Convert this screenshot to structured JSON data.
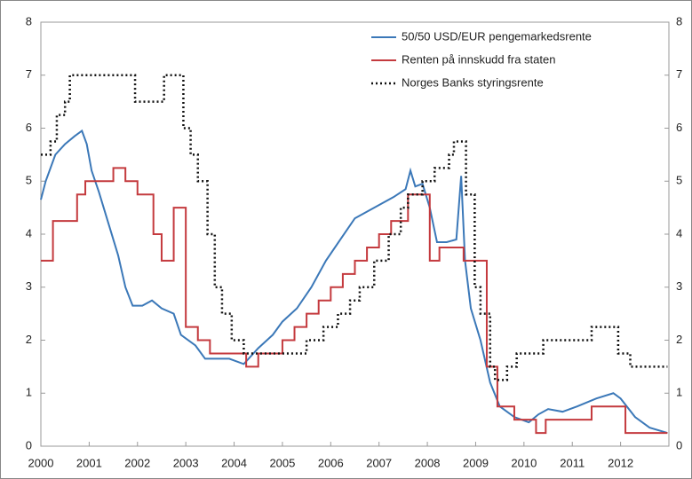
{
  "chart_data": {
    "type": "line",
    "xlim": [
      2000,
      2013
    ],
    "xticks": [
      2000,
      2001,
      2002,
      2003,
      2004,
      2005,
      2006,
      2007,
      2008,
      2009,
      2010,
      2011,
      2012
    ],
    "ylim": [
      0,
      8
    ],
    "yticks": [
      0,
      1,
      2,
      3,
      4,
      5,
      6,
      7,
      8
    ],
    "y2lim": [
      0,
      8
    ],
    "y2ticks": [
      0,
      1,
      2,
      3,
      4,
      5,
      6,
      7,
      8
    ],
    "legend": "top-right",
    "series": [
      {
        "name": "50/50 USD/EUR pengemarkedsrente",
        "color": "#3b78b8",
        "style": "solid",
        "step": false,
        "x": [
          2000,
          2000.1,
          2000.3,
          2000.5,
          2000.7,
          2000.85,
          2000.95,
          2001.05,
          2001.2,
          2001.4,
          2001.6,
          2001.75,
          2001.9,
          2002.1,
          2002.3,
          2002.5,
          2002.75,
          2002.9,
          2003.2,
          2003.4,
          2003.6,
          2003.9,
          2004.2,
          2004.5,
          2004.8,
          2005.0,
          2005.3,
          2005.6,
          2005.9,
          2006.2,
          2006.5,
          2006.8,
          2007.0,
          2007.3,
          2007.55,
          2007.65,
          2007.75,
          2007.9,
          2008.05,
          2008.2,
          2008.4,
          2008.6,
          2008.7,
          2008.78,
          2008.9,
          2009.1,
          2009.3,
          2009.5,
          2009.8,
          2010.1,
          2010.3,
          2010.5,
          2010.8,
          2011.1,
          2011.5,
          2011.85,
          2012.0,
          2012.3,
          2012.6,
          2012.97
        ],
        "values": [
          4.65,
          5.0,
          5.5,
          5.7,
          5.85,
          5.95,
          5.7,
          5.2,
          4.8,
          4.2,
          3.6,
          3.0,
          2.65,
          2.65,
          2.75,
          2.6,
          2.5,
          2.1,
          1.9,
          1.65,
          1.65,
          1.65,
          1.55,
          1.85,
          2.1,
          2.35,
          2.6,
          3.0,
          3.5,
          3.9,
          4.3,
          4.45,
          4.55,
          4.7,
          4.85,
          5.2,
          4.9,
          4.95,
          4.5,
          3.85,
          3.85,
          3.9,
          5.1,
          3.5,
          2.6,
          2.0,
          1.2,
          0.75,
          0.55,
          0.45,
          0.6,
          0.7,
          0.65,
          0.75,
          0.9,
          1.0,
          0.9,
          0.55,
          0.35,
          0.25
        ]
      },
      {
        "name": "Renten på innskudd fra staten",
        "color": "#c43a3e",
        "style": "solid",
        "step": true,
        "x": [
          2000,
          2000.25,
          2000.75,
          2000.92,
          2001.5,
          2001.75,
          2002.0,
          2002.33,
          2002.5,
          2002.75,
          2003.0,
          2003.25,
          2003.5,
          2004.25,
          2004.5,
          2005.0,
          2005.25,
          2005.5,
          2005.75,
          2006.0,
          2006.25,
          2006.5,
          2006.75,
          2007.0,
          2007.25,
          2007.6,
          2008.05,
          2008.25,
          2008.75,
          2009.23,
          2009.45,
          2009.8,
          2010.25,
          2010.45,
          2011.4,
          2012.1,
          2012.97
        ],
        "values": [
          3.5,
          4.25,
          4.75,
          5.0,
          5.25,
          5.0,
          4.75,
          4.0,
          3.5,
          4.5,
          2.25,
          2.0,
          1.75,
          1.5,
          1.75,
          2.0,
          2.25,
          2.5,
          2.75,
          3.0,
          3.25,
          3.5,
          3.75,
          4.0,
          4.25,
          4.75,
          3.5,
          3.75,
          3.5,
          1.5,
          0.75,
          0.5,
          0.25,
          0.5,
          0.75,
          0.25,
          0.25
        ]
      },
      {
        "name": "Norges Banks styringsrente",
        "color": "#111111",
        "style": "dotted",
        "step": true,
        "x": [
          2000,
          2000.2,
          2000.33,
          2000.5,
          2000.6,
          2001.95,
          2002.55,
          2002.95,
          2003.1,
          2003.25,
          2003.45,
          2003.6,
          2003.75,
          2003.95,
          2004.2,
          2005.5,
          2005.85,
          2006.15,
          2006.4,
          2006.6,
          2006.9,
          2007.2,
          2007.45,
          2007.6,
          2007.9,
          2008.15,
          2008.45,
          2008.55,
          2008.8,
          2008.98,
          2009.1,
          2009.3,
          2009.4,
          2009.65,
          2009.85,
          2010.4,
          2011.4,
          2011.95,
          2012.2,
          2012.97
        ],
        "values": [
          5.5,
          5.75,
          6.25,
          6.5,
          7.0,
          6.5,
          7.0,
          6.0,
          5.5,
          5.0,
          4.0,
          3.0,
          2.5,
          2.0,
          1.75,
          2.0,
          2.25,
          2.5,
          2.75,
          3.0,
          3.5,
          4.0,
          4.5,
          4.75,
          5.0,
          5.25,
          5.5,
          5.75,
          4.75,
          3.0,
          2.5,
          1.5,
          1.25,
          1.5,
          1.75,
          2.0,
          2.25,
          1.75,
          1.5,
          1.5
        ]
      }
    ]
  }
}
